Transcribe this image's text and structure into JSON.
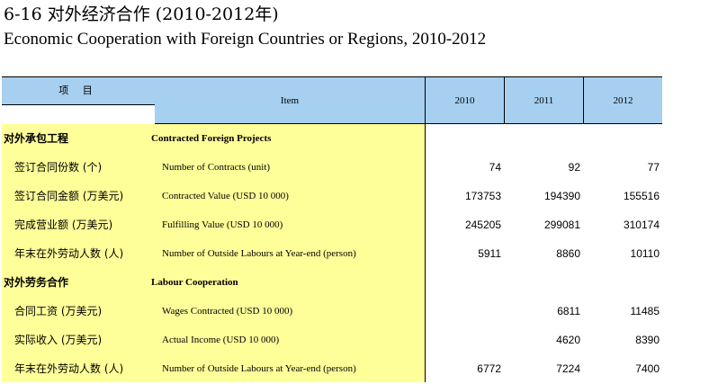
{
  "title": {
    "cn": "6-16 对外经济合作 (2010-2012年)",
    "en": "Economic Cooperation with Foreign Countries or Regions, 2010-2012"
  },
  "table": {
    "headers": {
      "item_cn": "项 目",
      "item_en": "Item",
      "y2010": "2010",
      "y2011": "2011",
      "y2012": "2012"
    },
    "rows": [
      {
        "cn": "对外承包工程",
        "en": "Contracted Foreign Projects",
        "section": true,
        "v2010": "",
        "v2011": "",
        "v2012": ""
      },
      {
        "cn": "签订合同份数 (个)",
        "en": "Number of Contracts (unit)",
        "section": false,
        "v2010": "74",
        "v2011": "92",
        "v2012": "77"
      },
      {
        "cn": "签订合同金额 (万美元)",
        "en": "Contracted Value (USD 10 000)",
        "section": false,
        "v2010": "173753",
        "v2011": "194390",
        "v2012": "155516"
      },
      {
        "cn": "完成营业额 (万美元)",
        "en": "Fulfilling Value (USD 10 000)",
        "section": false,
        "v2010": "245205",
        "v2011": "299081",
        "v2012": "310174"
      },
      {
        "cn": "年末在外劳动人数 (人)",
        "en": "Number of Outside Labours at Year-end (person)",
        "section": false,
        "v2010": "5911",
        "v2011": "8860",
        "v2012": "10110"
      },
      {
        "cn": "对外劳务合作",
        "en": "Labour Cooperation",
        "section": true,
        "v2010": "",
        "v2011": "",
        "v2012": ""
      },
      {
        "cn": "合同工资 (万美元)",
        "en": "Wages Contracted (USD 10 000)",
        "section": false,
        "v2010": "",
        "v2011": "6811",
        "v2012": "11485"
      },
      {
        "cn": "实际收入 (万美元)",
        "en": "Actual Income (USD 10 000)",
        "section": false,
        "v2010": "",
        "v2011": "4620",
        "v2012": "8390"
      },
      {
        "cn": "年末在外劳动人数 (人)",
        "en": "Number of Outside Labours at Year-end (person)",
        "section": false,
        "v2010": "6772",
        "v2011": "7224",
        "v2012": "7400"
      }
    ]
  },
  "colors": {
    "header_bg": "#a6cff0",
    "label_bg": "#ffff99"
  }
}
